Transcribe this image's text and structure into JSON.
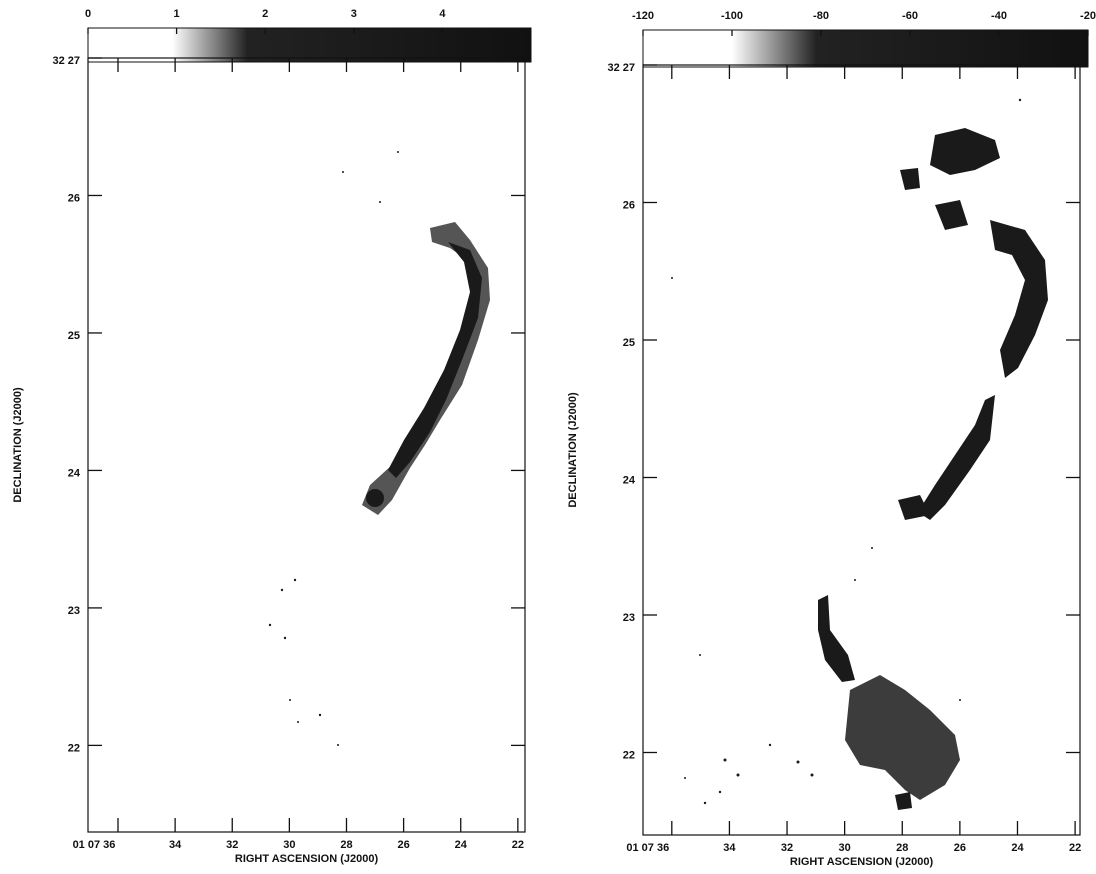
{
  "chart_data": [
    {
      "type": "image",
      "xlabel": "RIGHT ASCENSION (J2000)",
      "ylabel": "DECLINATION (J2000)",
      "xlim": [
        37.05,
        21.75
      ],
      "xticks": [
        {
          "value": 36,
          "label": "01 07 36"
        },
        34,
        32,
        30,
        28,
        26,
        24,
        22
      ],
      "ylim": [
        21.37,
        27
      ],
      "yticks": [
        {
          "value": 27,
          "label": "32 27"
        },
        26,
        25,
        24,
        23,
        22
      ],
      "clim": [
        0,
        5
      ],
      "cticks": [
        0,
        1,
        2,
        3,
        4
      ]
    },
    {
      "type": "image",
      "xlabel": "RIGHT ASCENSION (J2000)",
      "ylabel": "DECLINATION (J2000)",
      "xlim": [
        37.0,
        21.83
      ],
      "xticks": [
        {
          "value": 36,
          "label": "01 07 36"
        },
        34,
        32,
        30,
        28,
        26,
        24,
        22
      ],
      "ylim": [
        21.4,
        27
      ],
      "yticks": [
        {
          "value": 27,
          "label": "32 27"
        },
        26,
        25,
        24,
        23,
        22
      ],
      "clim": [
        -120,
        -20
      ],
      "cticks": [
        -120,
        -100,
        -80,
        -60,
        -40,
        -20
      ]
    }
  ]
}
